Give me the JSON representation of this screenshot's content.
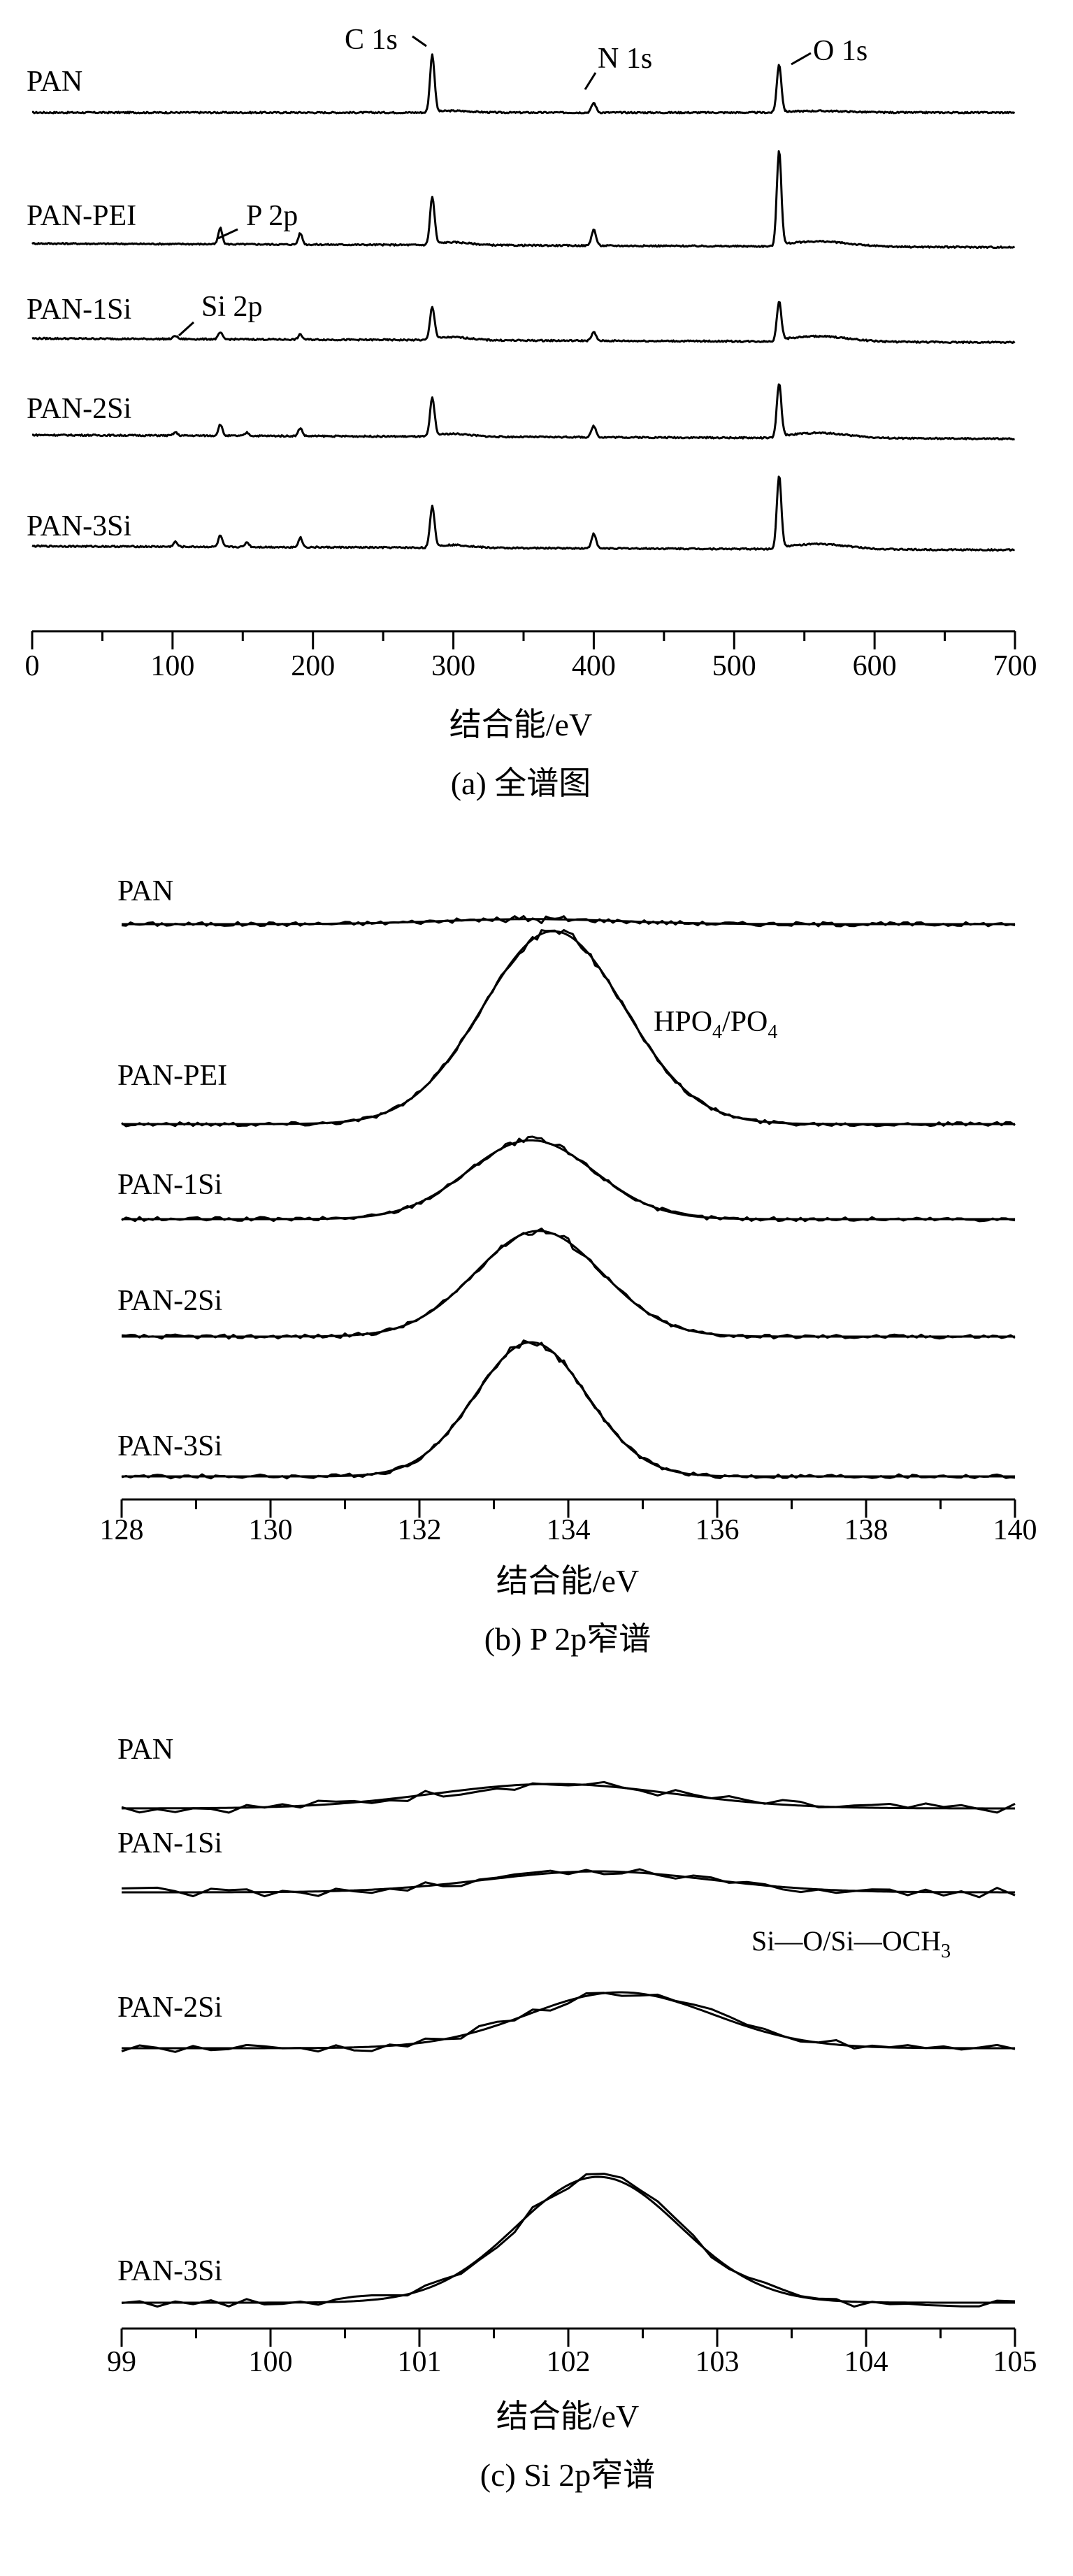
{
  "chart_data": [
    {
      "type": "line",
      "panel": "a",
      "caption": "(a) 全谱图",
      "xlabel": "结合能/eV",
      "ylabel": "",
      "xlim": [
        0,
        700
      ],
      "xticks": [
        0,
        100,
        200,
        300,
        400,
        500,
        600,
        700
      ],
      "grid": false,
      "peak_labels": [
        {
          "text": "C 1s",
          "x": 285
        },
        {
          "text": "N 1s",
          "x": 400
        },
        {
          "text": "O 1s",
          "x": 532
        },
        {
          "text": "P 2p",
          "x": 134
        },
        {
          "text": "Si 2p",
          "x": 102
        }
      ],
      "series": [
        {
          "name": "PAN",
          "peaks": [
            [
              285,
              18
            ],
            [
              400,
              3
            ],
            [
              532,
              15
            ]
          ]
        },
        {
          "name": "PAN-PEI",
          "peaks": [
            [
              134,
              5
            ],
            [
              191,
              3.5
            ],
            [
              285,
              15
            ],
            [
              400,
              5
            ],
            [
              532,
              30
            ]
          ]
        },
        {
          "name": "PAN-1Si",
          "peaks": [
            [
              102,
              1
            ],
            [
              134,
              2
            ],
            [
              191,
              1.5
            ],
            [
              285,
              10
            ],
            [
              400,
              2.5
            ],
            [
              532,
              12
            ]
          ]
        },
        {
          "name": "PAN-2Si",
          "peaks": [
            [
              102,
              1
            ],
            [
              134,
              3.5
            ],
            [
              153,
              1
            ],
            [
              191,
              2.5
            ],
            [
              285,
              12
            ],
            [
              400,
              3.5
            ],
            [
              532,
              17
            ]
          ]
        },
        {
          "name": "PAN-3Si",
          "peaks": [
            [
              102,
              1.5
            ],
            [
              134,
              3.5
            ],
            [
              153,
              1.5
            ],
            [
              191,
              3
            ],
            [
              285,
              13
            ],
            [
              400,
              4.5
            ],
            [
              532,
              23
            ]
          ]
        }
      ]
    },
    {
      "type": "line",
      "panel": "b",
      "caption": "(b) P 2p窄谱",
      "xlabel": "结合能/eV",
      "ylabel": "",
      "xlim": [
        128,
        140
      ],
      "xticks": [
        128,
        130,
        132,
        134,
        136,
        138,
        140
      ],
      "grid": false,
      "annotation": {
        "text": "HPO",
        "sub1": "4",
        "mid": "/PO",
        "sub2": "4"
      },
      "series": [
        {
          "name": "PAN",
          "center": 133.5,
          "height": 0.3,
          "sigma": 1.2
        },
        {
          "name": "PAN-PEI",
          "center": 133.8,
          "height": 11.5,
          "sigma": 0.95
        },
        {
          "name": "PAN-1Si",
          "center": 133.5,
          "height": 4.7,
          "sigma": 0.85
        },
        {
          "name": "PAN-2Si",
          "center": 133.6,
          "height": 6.3,
          "sigma": 0.85
        },
        {
          "name": "PAN-3Si",
          "center": 133.5,
          "height": 8.0,
          "sigma": 0.75
        }
      ]
    },
    {
      "type": "line",
      "panel": "c",
      "caption": "(c) Si 2p窄谱",
      "xlabel": "结合能/eV",
      "ylabel": "",
      "xlim": [
        99,
        105
      ],
      "xticks": [
        99,
        100,
        101,
        102,
        103,
        104,
        105
      ],
      "grid": false,
      "annotation": {
        "text": "Si—O/Si—OCH",
        "sub1": "3"
      },
      "series": [
        {
          "name": "PAN",
          "center": 101.9,
          "height": 3.5,
          "sigma": 0.8
        },
        {
          "name": "PAN-1Si",
          "center": 102.2,
          "height": 3.0,
          "sigma": 0.75
        },
        {
          "name": "PAN-2Si",
          "center": 102.35,
          "height": 8.0,
          "sigma": 0.62
        },
        {
          "name": "PAN-3Si",
          "center": 102.2,
          "height": 18.0,
          "sigma": 0.55
        }
      ]
    }
  ]
}
